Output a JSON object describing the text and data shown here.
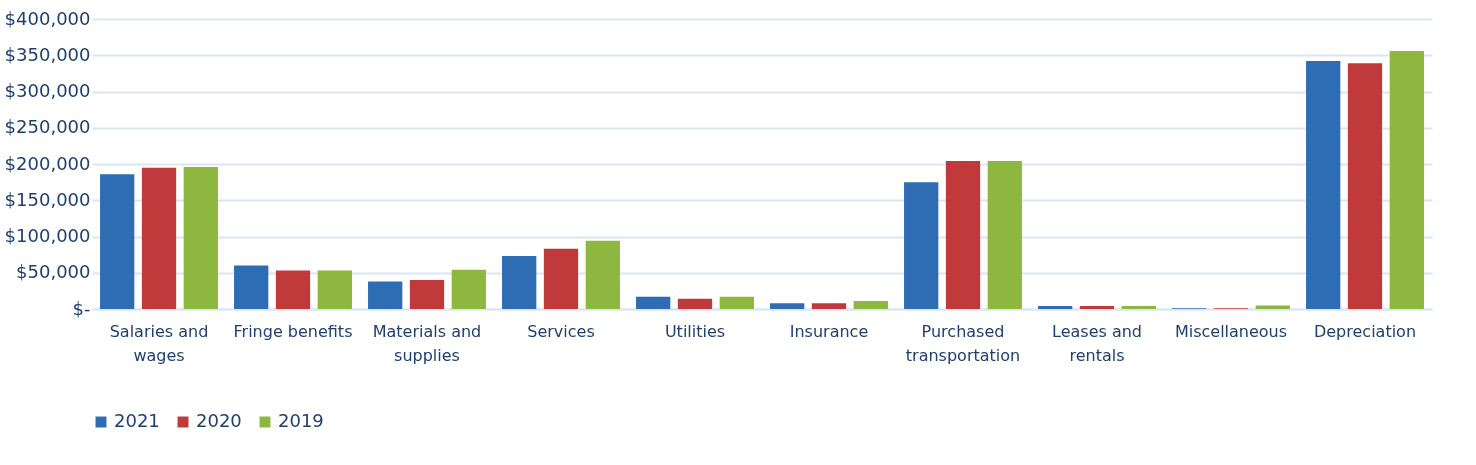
{
  "chart_data": {
    "type": "bar",
    "categories": [
      "Salaries and wages",
      "Fringe benefits",
      "Materials and supplies",
      "Services",
      "Utilities",
      "Insurance",
      "Purchased transportation",
      "Leases and rentals",
      "Miscellaneous",
      "Depreciation"
    ],
    "series": [
      {
        "name": "2021",
        "color": "#2e6db4",
        "values": [
          186000,
          60000,
          38000,
          73000,
          17000,
          8000,
          175000,
          4000,
          1000,
          342000
        ]
      },
      {
        "name": "2020",
        "color": "#c0393b",
        "values": [
          195000,
          53000,
          40000,
          83000,
          14000,
          8000,
          204000,
          4000,
          1000,
          339000
        ]
      },
      {
        "name": "2019",
        "color": "#8db73f",
        "values": [
          196000,
          53000,
          54000,
          94000,
          17000,
          11000,
          204000,
          4000,
          5000,
          356000
        ]
      }
    ],
    "ylim": [
      0,
      400000
    ],
    "yticks": [
      {
        "value": 0,
        "label": "$-"
      },
      {
        "value": 50000,
        "label": "$50,000"
      },
      {
        "value": 100000,
        "label": "$100,000"
      },
      {
        "value": 150000,
        "label": "$150,000"
      },
      {
        "value": 200000,
        "label": "$200,000"
      },
      {
        "value": 250000,
        "label": "$250,000"
      },
      {
        "value": 300000,
        "label": "$300,000"
      },
      {
        "value": 350000,
        "label": "$350,000"
      },
      {
        "value": 400000,
        "label": "$400,000"
      }
    ],
    "grid": "y",
    "legend": "bottom"
  }
}
